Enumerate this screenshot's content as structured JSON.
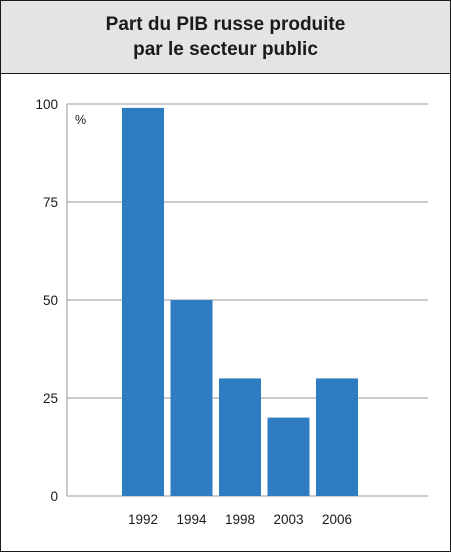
{
  "chart_data": {
    "type": "bar",
    "title_lines": [
      "Part du PIB russe produite",
      "par le secteur public"
    ],
    "unit_label": "%",
    "categories": [
      "1992",
      "1994",
      "1998",
      "2003",
      "2006"
    ],
    "values": [
      99,
      50,
      30,
      20,
      30
    ],
    "ylim": [
      0,
      100
    ],
    "yticks": [
      0,
      25,
      50,
      75,
      100
    ],
    "grid": true,
    "bar_color": "#2e7dc3",
    "grid_color": "#9a9a9a"
  }
}
